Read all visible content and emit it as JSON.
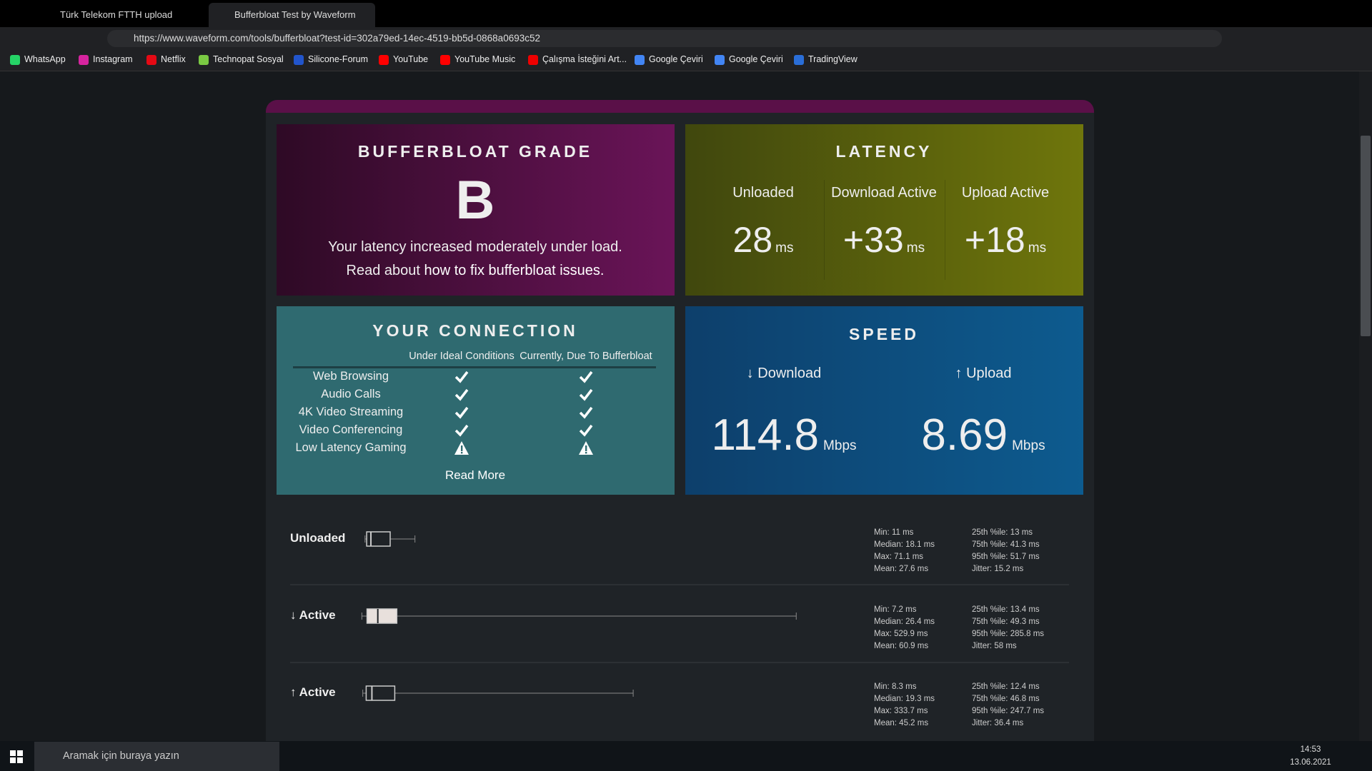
{
  "browser": {
    "tabs": [
      "Türk Telekom FTTH upload yapa",
      "Bufferbloat Test by Waveform"
    ],
    "url": "https://www.waveform.com/tools/bufferbloat?test-id=302a79ed-14ec-4519-bb5d-0868a0693c52",
    "bookmarks": [
      "WhatsApp",
      "Instagram",
      "Netflix",
      "Technopat Sosyal",
      "Silicone-Forum",
      "YouTube",
      "YouTube Music",
      "Çalışma İsteğini Art...",
      "Google Çeviri",
      "Google Çeviri",
      "TradingView"
    ]
  },
  "grade": {
    "title": "BUFFERBLOAT GRADE",
    "grade": "B",
    "line1": "Your latency increased moderately under load.",
    "line2": "Read about",
    "link": "how to fix bufferbloat issues."
  },
  "latency": {
    "title": "LATENCY",
    "items": [
      {
        "label": "Unloaded",
        "value": 28,
        "unit": "ms"
      },
      {
        "label": "Download Active",
        "value": "+33",
        "unit": "ms"
      },
      {
        "label": "Upload Active",
        "value": "+18",
        "unit": "ms"
      }
    ]
  },
  "connection": {
    "title": "YOUR CONNECTION",
    "columns": [
      "Under Ideal Conditions",
      "Currently, Due To Bufferbloat"
    ],
    "rows": [
      {
        "label": "Web Browsing",
        "ideal": "ok",
        "current": "ok"
      },
      {
        "label": "Audio Calls",
        "ideal": "ok",
        "current": "ok"
      },
      {
        "label": "4K Video Streaming",
        "ideal": "ok",
        "current": "ok"
      },
      {
        "label": "Video Conferencing",
        "ideal": "ok",
        "current": "ok"
      },
      {
        "label": "Low Latency Gaming",
        "ideal": "warn",
        "current": "warn"
      }
    ],
    "link": "Read More"
  },
  "speed": {
    "title": "SPEED",
    "items": [
      {
        "label": "↓ Download",
        "value": 114.8,
        "unit": "Mbps"
      },
      {
        "label": "↑ Upload",
        "value": 8.69,
        "unit": "Mbps"
      }
    ]
  },
  "details": [
    {
      "label": "Unloaded",
      "stats": [
        {
          "label": "Min:",
          "value": 11,
          "unit": "ms"
        },
        {
          "label": "Median:",
          "value": 18.1,
          "unit": "ms"
        },
        {
          "label": "Max:",
          "value": 71.1,
          "unit": "ms"
        },
        {
          "label": "Mean:",
          "value": 27.6,
          "unit": "ms"
        },
        {
          "label": "25th %ile:",
          "value": 13,
          "unit": "ms"
        },
        {
          "label": "75th %ile:",
          "value": 41.3,
          "unit": "ms"
        },
        {
          "label": "95th %ile:",
          "value": 51.7,
          "unit": "ms"
        },
        {
          "label": "Jitter:",
          "value": 15.2,
          "unit": "ms"
        }
      ]
    },
    {
      "label": "↓ Active",
      "stats": [
        {
          "label": "Min:",
          "value": 7.2,
          "unit": "ms"
        },
        {
          "label": "Median:",
          "value": 26.4,
          "unit": "ms"
        },
        {
          "label": "Max:",
          "value": 529.9,
          "unit": "ms"
        },
        {
          "label": "Mean:",
          "value": 60.9,
          "unit": "ms"
        },
        {
          "label": "25th %ile:",
          "value": 13.4,
          "unit": "ms"
        },
        {
          "label": "75th %ile:",
          "value": 49.3,
          "unit": "ms"
        },
        {
          "label": "95th %ile:",
          "value": 285.8,
          "unit": "ms"
        },
        {
          "label": "Jitter:",
          "value": 58,
          "unit": "ms"
        }
      ]
    },
    {
      "label": "↑ Active",
      "stats": [
        {
          "label": "Min:",
          "value": 8.3,
          "unit": "ms"
        },
        {
          "label": "Median:",
          "value": 19.3,
          "unit": "ms"
        },
        {
          "label": "Max:",
          "value": 333.7,
          "unit": "ms"
        },
        {
          "label": "Mean:",
          "value": 45.2,
          "unit": "ms"
        },
        {
          "label": "25th %ile:",
          "value": 12.4,
          "unit": "ms"
        },
        {
          "label": "75th %ile:",
          "value": 46.8,
          "unit": "ms"
        },
        {
          "label": "95th %ile:",
          "value": 247.7,
          "unit": "ms"
        },
        {
          "label": "Jitter:",
          "value": 36.4,
          "unit": "ms"
        }
      ]
    }
  ],
  "taskbar": {
    "search": "Aramak için buraya yazın",
    "time": "14:53",
    "date": "13.06.2021"
  }
}
